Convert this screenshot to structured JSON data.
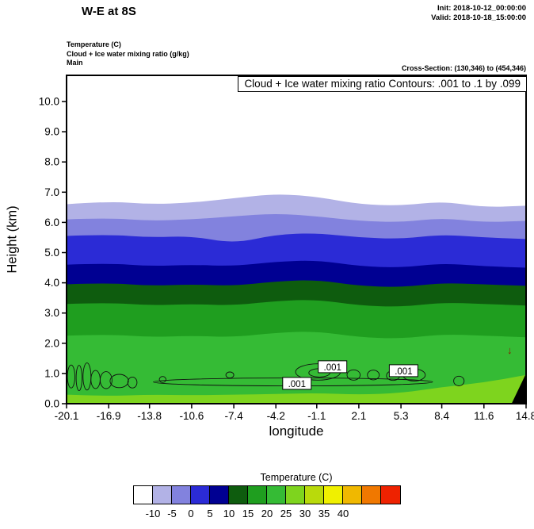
{
  "header": {
    "title": "W-E at 8S",
    "init_line": "Init: 2018-10-12_00:00:00",
    "valid_line": "Valid: 2018-10-18_15:00:00"
  },
  "legend": {
    "line1": "Temperature  (C)",
    "line2": "Cloud + Ice water mixing ratio  (g/kg)",
    "line3": "Main"
  },
  "cross_section_note": "Cross-Section: (130,346) to (454,346)",
  "plot": {
    "inner_title": "Cloud + Ice water mixing ratio Contours: .001 to .1 by .099",
    "ylabel": "Height (km)",
    "xlabel": "longitude"
  },
  "colorbar": {
    "title": "Temperature  (C)",
    "colors": [
      "#ffffff",
      "#b2b2e6",
      "#8282de",
      "#2b2bd6",
      "#000092",
      "#0e5c0e",
      "#1f9e1f",
      "#35bb35",
      "#7ed41e",
      "#b9da0b",
      "#f0f000",
      "#f0b800",
      "#f07800",
      "#ee2200"
    ],
    "labels": [
      "-10",
      "-5",
      "0",
      "5",
      "10",
      "15",
      "20",
      "25",
      "30",
      "35",
      "40"
    ]
  },
  "chart_data": {
    "type": "heatmap",
    "subtype": "filled-contour vertical cross-section (temperature shading + cloud mixing ratio contours)",
    "title": "Cloud + Ice water mixing ratio Contours: .001 to .1 by .099",
    "xlabel": "longitude",
    "ylabel": "Height (km)",
    "x_range": [
      -20.1,
      14.8
    ],
    "y_range": [
      0,
      10.87
    ],
    "x_ticks": [
      -20.1,
      -16.9,
      -13.8,
      -10.6,
      -7.4,
      -4.2,
      -1.1,
      2.1,
      5.3,
      8.4,
      11.6,
      14.8
    ],
    "x_tick_labels": [
      "-20.1",
      "-16.9",
      "-13.8",
      "-10.6",
      "-7.4",
      "-4.2",
      "-1.1",
      "2.1",
      "5.3",
      "8.4",
      "11.6",
      "14.8"
    ],
    "y_ticks": [
      0,
      1,
      2,
      3,
      4,
      5,
      6,
      7,
      8,
      9,
      10
    ],
    "y_tick_labels": [
      "0.0",
      "1.0",
      "2.0",
      "3.0",
      "4.0",
      "5.0",
      "6.0",
      "7.0",
      "8.0",
      "9.0",
      "10.0"
    ],
    "temperature_bands": {
      "units": "C",
      "note": "height (km) of each temperature contour sampled at x_ticks; region below each contour is filled with the next colorbar color",
      "boundaries": [
        {
          "temp": -10,
          "heights": [
            6.6,
            6.7,
            6.6,
            6.65,
            6.8,
            6.95,
            6.85,
            6.6,
            6.55,
            6.7,
            6.5,
            6.55
          ]
        },
        {
          "temp": -5,
          "heights": [
            6.1,
            6.15,
            6.05,
            6.1,
            6.2,
            6.3,
            6.2,
            6.05,
            6.0,
            6.15,
            6.0,
            6.05
          ]
        },
        {
          "temp": 0,
          "heights": [
            5.55,
            5.6,
            5.5,
            5.55,
            5.3,
            5.6,
            5.65,
            5.5,
            5.45,
            5.6,
            5.5,
            5.45
          ]
        },
        {
          "temp": 5,
          "heights": [
            4.6,
            4.65,
            4.55,
            4.6,
            4.55,
            4.7,
            4.75,
            4.55,
            4.5,
            4.65,
            4.55,
            4.5
          ]
        },
        {
          "temp": 10,
          "heights": [
            3.95,
            4.0,
            3.9,
            3.95,
            3.9,
            4.05,
            4.1,
            3.9,
            3.85,
            4.0,
            3.95,
            3.9
          ]
        },
        {
          "temp": 15,
          "heights": [
            3.3,
            3.35,
            3.25,
            3.3,
            3.25,
            3.4,
            3.45,
            3.25,
            3.2,
            3.35,
            3.3,
            3.25
          ]
        },
        {
          "temp": 20,
          "heights": [
            2.25,
            2.3,
            2.2,
            2.25,
            2.2,
            2.35,
            2.4,
            2.2,
            2.15,
            2.3,
            2.25,
            2.2
          ]
        },
        {
          "temp": 25,
          "heights": [
            0.3,
            0.25,
            0.3,
            0.28,
            0.3,
            0.32,
            0.35,
            0.3,
            0.35,
            0.55,
            0.7,
            0.95
          ]
        }
      ]
    },
    "cloud_contours": {
      "contour_levels_text": ".001 to .1 by .099",
      "levels": [
        0.001,
        0.1
      ],
      "cells": [
        [
          -19.75,
          0.9,
          0.28,
          0.38
        ],
        [
          -19.15,
          0.85,
          0.22,
          0.42
        ],
        [
          -18.55,
          0.9,
          0.3,
          0.45
        ],
        [
          -17.9,
          0.8,
          0.35,
          0.3
        ],
        [
          -17.1,
          0.78,
          0.45,
          0.28
        ],
        [
          -16.1,
          0.75,
          0.7,
          0.22
        ],
        [
          -15.1,
          0.7,
          0.35,
          0.18
        ],
        [
          -12.8,
          0.8,
          0.25,
          0.1
        ],
        [
          -2.9,
          0.72,
          10.6,
          0.13
        ],
        [
          -7.7,
          0.95,
          0.3,
          0.1
        ],
        [
          -1.0,
          1.05,
          1.7,
          0.27
        ],
        [
          -0.9,
          1.02,
          0.8,
          0.14
        ],
        [
          1.7,
          0.95,
          0.5,
          0.17
        ],
        [
          3.2,
          0.95,
          0.45,
          0.16
        ],
        [
          4.7,
          0.93,
          0.5,
          0.16
        ],
        [
          6.3,
          0.95,
          0.85,
          0.2
        ],
        [
          9.7,
          0.75,
          0.4,
          0.16
        ]
      ],
      "labels": [
        {
          "text": ".001",
          "x": -2.6,
          "y": 0.66
        },
        {
          "text": ".001",
          "x": 0.1,
          "y": 1.21
        },
        {
          "text": ".001",
          "x": 5.5,
          "y": 1.08
        }
      ]
    },
    "terrain_polygon": [
      [
        13.7,
        0
      ],
      [
        14.8,
        0
      ],
      [
        14.8,
        1.0
      ]
    ],
    "arrow": {
      "glyph": "↓",
      "x": 13.55,
      "y": 1.65,
      "color": "#8b1a00"
    }
  }
}
